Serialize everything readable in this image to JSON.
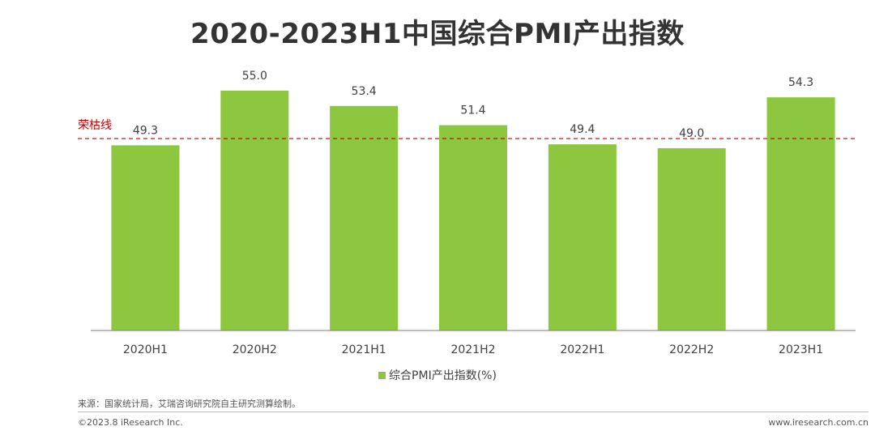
{
  "title": "2020-2023H1中国综合PMI产出指数",
  "colors": {
    "bar": "#8dc63f",
    "threshold": "#c00000",
    "axis": "#7f7f7f",
    "text": "#404040"
  },
  "chart_data": {
    "type": "bar",
    "title": "2020-2023H1中国综合PMI产出指数",
    "categories": [
      "2020H1",
      "2020H2",
      "2021H1",
      "2021H2",
      "2022H1",
      "2022H2",
      "2023H1"
    ],
    "values": [
      49.3,
      55.0,
      53.4,
      51.4,
      49.4,
      49.0,
      54.3
    ],
    "value_labels": [
      "49.3",
      "55.0",
      "53.4",
      "51.4",
      "49.4",
      "49.0",
      "54.3"
    ],
    "series_name": "综合PMI产出指数(%)",
    "threshold": {
      "value": 50,
      "label": "荣枯线"
    },
    "xlabel": "",
    "ylabel": "",
    "ylim": [
      30,
      56
    ],
    "grid": false,
    "legend_position": "bottom"
  },
  "source": "来源：国家统计局，艾瑞咨询研究院自主研究测算绘制。",
  "copyright": "©2023.8 iResearch Inc.",
  "website": "www.iresearch.com.cn"
}
